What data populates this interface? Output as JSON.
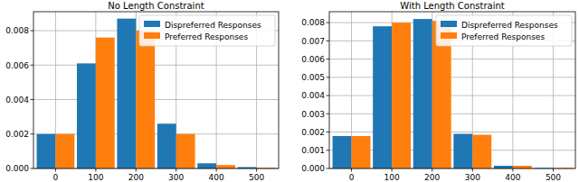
{
  "chart_data": [
    {
      "type": "bar",
      "title": "No Length Constraint",
      "x": [
        0,
        100,
        200,
        300,
        400,
        500
      ],
      "series": [
        {
          "name": "Dispreferred Responses",
          "color": "#1f77b4",
          "values": [
            0.002,
            0.0061,
            0.0087,
            0.0026,
            0.0003,
            8e-05
          ]
        },
        {
          "name": "Preferred Responses",
          "color": "#ff7f0e",
          "values": [
            0.002,
            0.0076,
            0.008,
            0.002,
            0.0002,
            5e-05
          ]
        }
      ],
      "xlim": [
        -55,
        555
      ],
      "xticks": [
        0,
        100,
        200,
        300,
        400,
        500
      ],
      "ylim": [
        0,
        0.0091
      ],
      "yticks": [
        {
          "value": 0,
          "label": "0.000"
        },
        {
          "value": 0.002,
          "label": "0.002"
        },
        {
          "value": 0.004,
          "label": "0.004"
        },
        {
          "value": 0.006,
          "label": "0.006"
        },
        {
          "value": 0.008,
          "label": "0.008"
        }
      ],
      "grid": true,
      "legend": "upper right"
    },
    {
      "type": "bar",
      "title": "With Length Constraint",
      "x": [
        0,
        100,
        200,
        300,
        400,
        500
      ],
      "series": [
        {
          "name": "Dispreferred Responses",
          "color": "#1f77b4",
          "values": [
            0.00178,
            0.0078,
            0.0082,
            0.0019,
            0.00015,
            3e-05
          ]
        },
        {
          "name": "Preferred Responses",
          "color": "#ff7f0e",
          "values": [
            0.00178,
            0.008,
            0.0081,
            0.00185,
            0.00015,
            3e-05
          ]
        }
      ],
      "xlim": [
        -55,
        555
      ],
      "xticks": [
        0,
        100,
        200,
        300,
        400,
        500
      ],
      "ylim": [
        0,
        0.0086
      ],
      "yticks": [
        {
          "value": 0,
          "label": "0.000"
        },
        {
          "value": 0.001,
          "label": "0.001"
        },
        {
          "value": 0.002,
          "label": "0.002"
        },
        {
          "value": 0.003,
          "label": "0.003"
        },
        {
          "value": 0.004,
          "label": "0.004"
        },
        {
          "value": 0.005,
          "label": "0.005"
        },
        {
          "value": 0.006,
          "label": "0.006"
        },
        {
          "value": 0.007,
          "label": "0.007"
        },
        {
          "value": 0.008,
          "label": "0.008"
        }
      ],
      "grid": true,
      "legend": "upper right"
    }
  ]
}
